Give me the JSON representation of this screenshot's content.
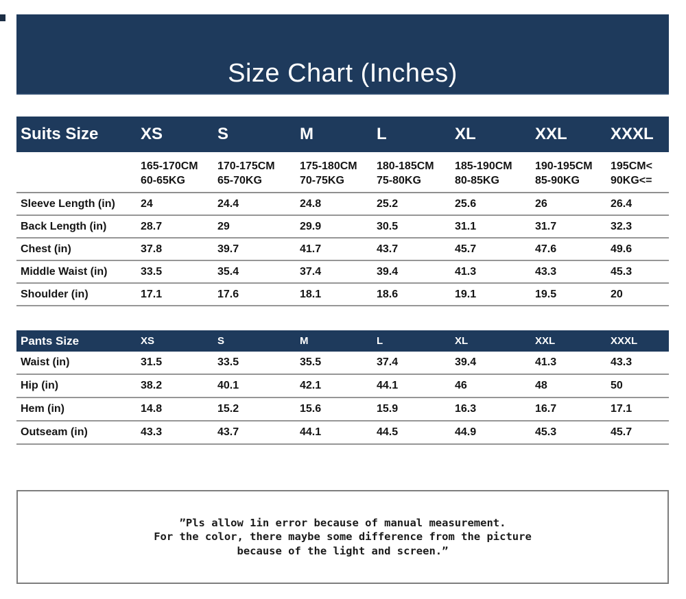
{
  "colors": {
    "navy": "#1e3a5c",
    "separator": "#969696",
    "footer_border": "#7d7d7d",
    "text": "#141414"
  },
  "banner": {
    "title": "Size Chart (Inches)"
  },
  "suits_table": {
    "header_label": "Suits Size",
    "sizes": [
      "XS",
      "S",
      "M",
      "L",
      "XL",
      "XXL",
      "XXXL"
    ],
    "ranges": [
      {
        "height": "165-170CM",
        "weight": "60-65KG"
      },
      {
        "height": "170-175CM",
        "weight": "65-70KG"
      },
      {
        "height": "175-180CM",
        "weight": "70-75KG"
      },
      {
        "height": "180-185CM",
        "weight": "75-80KG"
      },
      {
        "height": "185-190CM",
        "weight": "80-85KG"
      },
      {
        "height": "190-195CM",
        "weight": "85-90KG"
      },
      {
        "height": "195CM<",
        "weight": "90KG<="
      }
    ],
    "rows": [
      {
        "label": "Sleeve Length (in)",
        "values": [
          "24",
          "24.4",
          "24.8",
          "25.2",
          "25.6",
          "26",
          "26.4"
        ]
      },
      {
        "label": "Back Length (in)",
        "values": [
          "28.7",
          "29",
          "29.9",
          "30.5",
          "31.1",
          "31.7",
          "32.3"
        ]
      },
      {
        "label": "Chest (in)",
        "values": [
          "37.8",
          "39.7",
          "41.7",
          "43.7",
          "45.7",
          "47.6",
          "49.6"
        ]
      },
      {
        "label": "Middle Waist (in)",
        "values": [
          "33.5",
          "35.4",
          "37.4",
          "39.4",
          "41.3",
          "43.3",
          "45.3"
        ]
      },
      {
        "label": "Shoulder (in)",
        "values": [
          "17.1",
          "17.6",
          "18.1",
          "18.6",
          "19.1",
          "19.5",
          "20"
        ]
      }
    ]
  },
  "pants_table": {
    "header_label": "Pants Size",
    "sizes": [
      "XS",
      "S",
      "M",
      "L",
      "XL",
      "XXL",
      "XXXL"
    ],
    "rows": [
      {
        "label": "Waist (in)",
        "values": [
          "31.5",
          "33.5",
          "35.5",
          "37.4",
          "39.4",
          "41.3",
          "43.3"
        ]
      },
      {
        "label": "Hip (in)",
        "values": [
          "38.2",
          "40.1",
          "42.1",
          "44.1",
          "46",
          "48",
          "50"
        ]
      },
      {
        "label": "Hem (in)",
        "values": [
          "14.8",
          "15.2",
          "15.6",
          "15.9",
          "16.3",
          "16.7",
          "17.1"
        ]
      },
      {
        "label": "Outseam (in)",
        "values": [
          "43.3",
          "43.7",
          "44.1",
          "44.5",
          "44.9",
          "45.3",
          "45.7"
        ]
      }
    ]
  },
  "footer_note": {
    "lines": [
      "”Pls allow 1in error because of manual measurement.",
      "For the color, there maybe some difference from the picture",
      "because of the light and screen.”"
    ]
  }
}
